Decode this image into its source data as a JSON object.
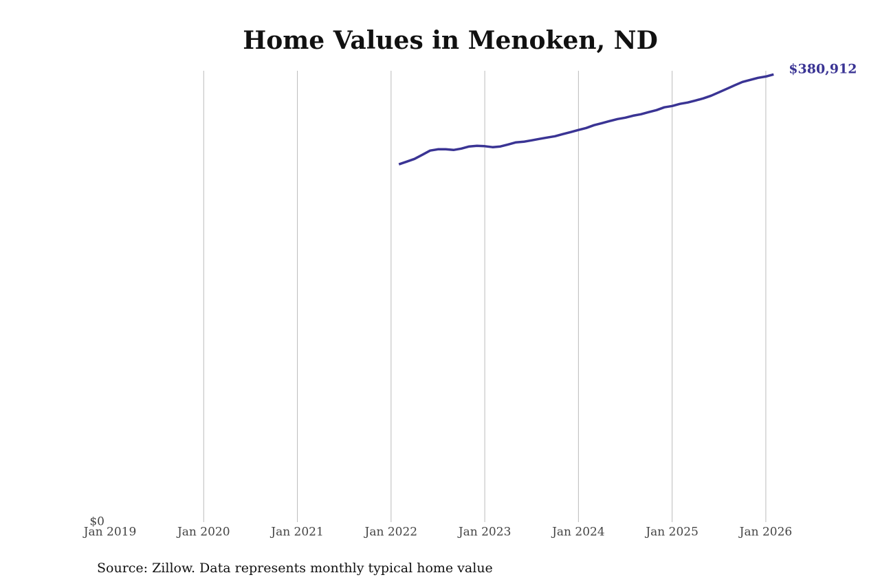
{
  "chart_data": {
    "type": "line",
    "title": "Home Values in Menoken, ND",
    "source": "Source: Zillow. Data represents monthly typical home value",
    "x": [
      "2022-02",
      "2022-03",
      "2022-04",
      "2022-05",
      "2022-06",
      "2022-07",
      "2022-08",
      "2022-09",
      "2022-10",
      "2022-11",
      "2022-12",
      "2023-01",
      "2023-02",
      "2023-03",
      "2023-04",
      "2023-05",
      "2023-06",
      "2023-07",
      "2023-08",
      "2023-09",
      "2023-10",
      "2023-11",
      "2023-12",
      "2024-01",
      "2024-02",
      "2024-03",
      "2024-04",
      "2024-05",
      "2024-06",
      "2024-07",
      "2024-08",
      "2024-09",
      "2024-10",
      "2024-11",
      "2024-12",
      "2025-01",
      "2025-02",
      "2025-03",
      "2025-04",
      "2025-05",
      "2025-06",
      "2025-07",
      "2025-08",
      "2025-09",
      "2025-10",
      "2025-11",
      "2025-12",
      "2026-01",
      "2026-02"
    ],
    "series": [
      {
        "color": "#3a3494",
        "values": [
          304400,
          306700,
          309000,
          312500,
          316100,
          317200,
          317200,
          316600,
          317800,
          319600,
          320100,
          319800,
          319000,
          319600,
          321300,
          323100,
          323600,
          324800,
          326000,
          327200,
          328300,
          330100,
          331800,
          333600,
          335300,
          337700,
          339400,
          341200,
          342900,
          344100,
          345800,
          347000,
          348800,
          350500,
          352900,
          354000,
          355800,
          357000,
          358700,
          360500,
          362800,
          365700,
          368600,
          371600,
          374500,
          376200,
          378000,
          379100,
          380912
        ],
        "value_labels": [
          null,
          null,
          null,
          null,
          null,
          null,
          null,
          null,
          null,
          null,
          null,
          null,
          null,
          null,
          null,
          null,
          null,
          null,
          null,
          null,
          null,
          null,
          null,
          null,
          null,
          null,
          null,
          null,
          null,
          null,
          null,
          null,
          null,
          null,
          null,
          null,
          null,
          null,
          null,
          null,
          null,
          null,
          null,
          null,
          null,
          null,
          null,
          null,
          "$380,912"
        ]
      }
    ],
    "xlim": [
      "2019-01",
      "2026-04"
    ],
    "xticks": [
      {
        "value": "2019-01",
        "label": "Jan 2019"
      },
      {
        "value": "2020-01",
        "label": "Jan 2020"
      },
      {
        "value": "2021-01",
        "label": "Jan 2021"
      },
      {
        "value": "2022-01",
        "label": "Jan 2022"
      },
      {
        "value": "2023-01",
        "label": "Jan 2023"
      },
      {
        "value": "2024-01",
        "label": "Jan 2024"
      },
      {
        "value": "2025-01",
        "label": "Jan 2025"
      },
      {
        "value": "2026-01",
        "label": "Jan 2026"
      }
    ],
    "ylim": [
      0,
      384000
    ],
    "yticks": [
      {
        "value": 0,
        "label": "$0"
      }
    ],
    "grid": true
  }
}
